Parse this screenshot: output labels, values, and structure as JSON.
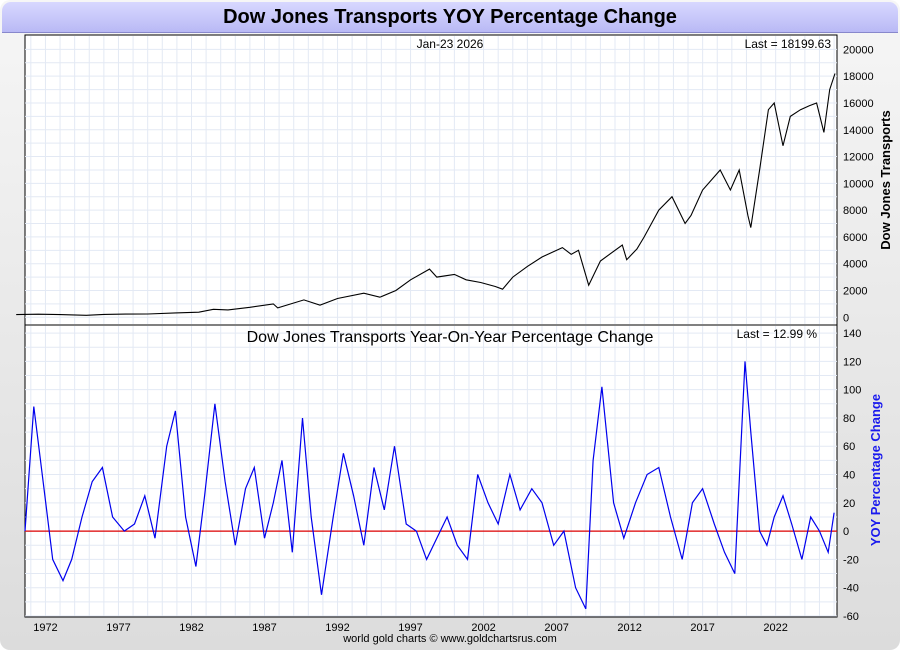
{
  "title": "Dow Jones Transports YOY Percentage Change",
  "footer": "world gold charts © www.goldchartsrus.com",
  "chart_data": [
    {
      "type": "line",
      "date_label": "Jan-23  2026",
      "last_label": "Last = 18199.63",
      "ylabel": "Dow Jones Transports",
      "ylim": [
        -500,
        21000
      ],
      "yticks": [
        0,
        2000,
        4000,
        6000,
        8000,
        10000,
        12000,
        14000,
        16000,
        18000,
        20000
      ],
      "color": "#000000",
      "series": [
        {
          "x": [
            1970.0,
            1971.5,
            1973.0,
            1974.8,
            1976.0,
            1977.5,
            1979.0,
            1980.9,
            1982.5,
            1983.5,
            1984.5,
            1986.0,
            1987.6,
            1987.9,
            1989.7,
            1990.8,
            1992.0,
            1993.8,
            1994.9,
            1996.0,
            1997.0,
            1998.3,
            1998.8,
            2000.0,
            2000.8,
            2001.8,
            2002.8,
            2003.3,
            2004.0,
            2005.0,
            2006.0,
            2007.4,
            2008.0,
            2008.5,
            2009.2,
            2010.0,
            2011.5,
            2011.8,
            2012.5,
            2013.0,
            2014.0,
            2014.9,
            2015.8,
            2016.2,
            2017.0,
            2018.2,
            2018.9,
            2019.5,
            2020.1,
            2020.3,
            2020.9,
            2021.5,
            2021.9,
            2022.5,
            2023.0,
            2023.7,
            2024.3,
            2024.8,
            2025.3,
            2025.7,
            2026.06
          ],
          "y": [
            200,
            230,
            200,
            150,
            220,
            240,
            250,
            330,
            380,
            600,
            550,
            750,
            1000,
            700,
            1300,
            900,
            1400,
            1800,
            1500,
            2000,
            2800,
            3600,
            3000,
            3200,
            2800,
            2600,
            2300,
            2100,
            3000,
            3800,
            4500,
            5200,
            4700,
            5000,
            2400,
            4200,
            5400,
            4300,
            5100,
            6000,
            8000,
            9000,
            7000,
            7600,
            9500,
            11000,
            9500,
            11000,
            7600,
            6700,
            11000,
            15500,
            16000,
            12800,
            15000,
            15500,
            15800,
            16000,
            13800,
            17000,
            18200
          ]
        }
      ]
    },
    {
      "type": "line",
      "title": "Dow Jones Transports Year-On-Year Percentage Change",
      "last_label": "Last = 12.99 %",
      "ylabel": "YOY Percentage Change",
      "ylim": [
        -60,
        145
      ],
      "yticks": [
        -60,
        -40,
        -20,
        0,
        20,
        40,
        60,
        80,
        100,
        120,
        140
      ],
      "xlim": [
        1970.6,
        2026.2
      ],
      "xticks": [
        1972,
        1977,
        1982,
        1987,
        1992,
        1997,
        2002,
        2007,
        2012,
        2017,
        2022
      ],
      "zero_line_color": "#dd0000",
      "color": "#0000ee",
      "series": [
        {
          "x": [
            1970.6,
            1971.2,
            1971.9,
            1972.5,
            1973.2,
            1973.8,
            1974.5,
            1975.2,
            1975.9,
            1976.6,
            1977.4,
            1978.1,
            1978.8,
            1979.5,
            1980.3,
            1980.9,
            1981.6,
            1982.3,
            1982.9,
            1983.6,
            1984.3,
            1985.0,
            1985.7,
            1986.3,
            1987.0,
            1987.6,
            1988.2,
            1988.9,
            1989.6,
            1990.2,
            1990.9,
            1991.7,
            1992.4,
            1993.1,
            1993.8,
            1994.5,
            1995.2,
            1995.9,
            1996.7,
            1997.4,
            1998.1,
            1998.8,
            1999.5,
            2000.2,
            2000.9,
            2001.6,
            2002.3,
            2003.0,
            2003.8,
            2004.5,
            2005.3,
            2006.0,
            2006.8,
            2007.5,
            2008.3,
            2009.0,
            2009.5,
            2010.1,
            2010.9,
            2011.6,
            2012.4,
            2013.2,
            2014.0,
            2014.8,
            2015.6,
            2016.3,
            2017.0,
            2017.8,
            2018.5,
            2019.2,
            2019.9,
            2020.3,
            2020.9,
            2021.4,
            2021.9,
            2022.5,
            2023.1,
            2023.8,
            2024.4,
            2025.0,
            2025.6,
            2026.0
          ],
          "y": [
            0,
            88,
            30,
            -20,
            -35,
            -20,
            10,
            35,
            45,
            10,
            0,
            5,
            25,
            -5,
            60,
            85,
            10,
            -25,
            25,
            90,
            35,
            -10,
            30,
            45,
            -5,
            20,
            50,
            -15,
            80,
            10,
            -45,
            10,
            55,
            25,
            -10,
            45,
            15,
            60,
            5,
            0,
            -20,
            -5,
            10,
            -10,
            -20,
            40,
            20,
            5,
            40,
            15,
            30,
            20,
            -10,
            0,
            -40,
            -55,
            50,
            102,
            20,
            -5,
            20,
            40,
            45,
            10,
            -20,
            20,
            30,
            5,
            -15,
            -30,
            120,
            70,
            0,
            -10,
            10,
            25,
            5,
            -20,
            10,
            0,
            -15,
            13
          ]
        }
      ]
    }
  ]
}
